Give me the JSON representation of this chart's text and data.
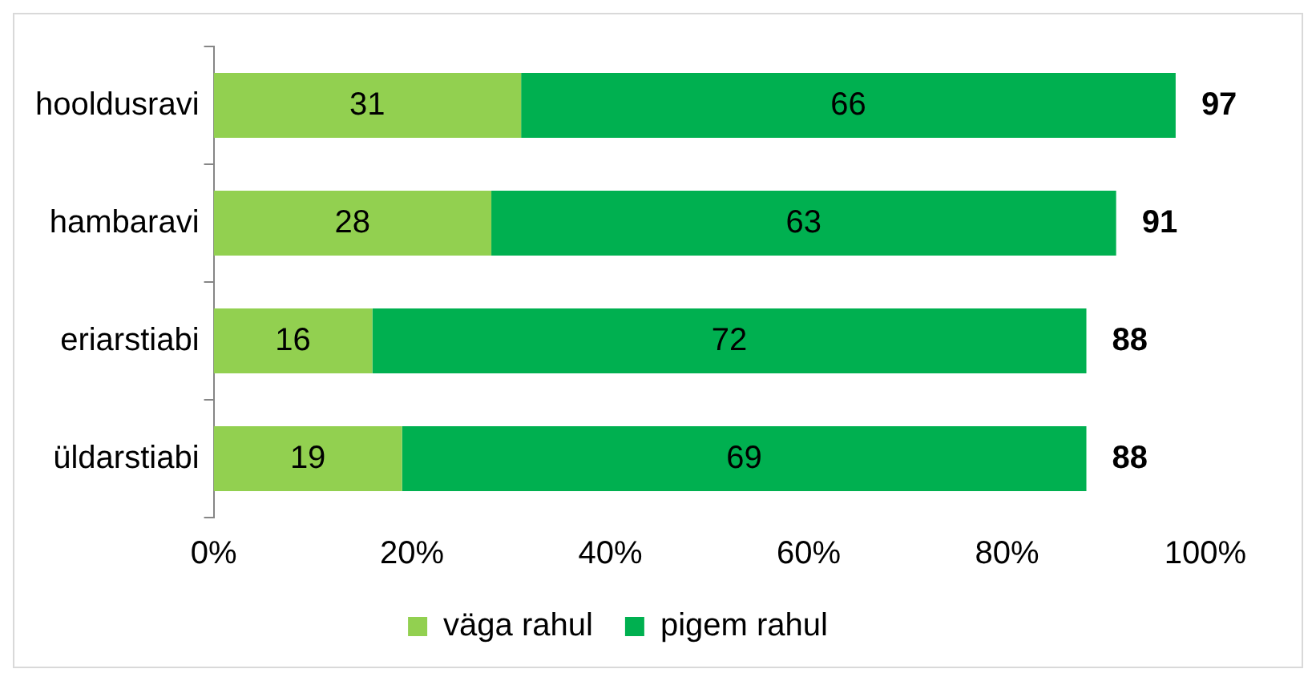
{
  "chart_data": {
    "type": "bar",
    "orientation": "horizontal",
    "stacked": true,
    "categories": [
      "hooldusravi",
      "hambaravi",
      "eriarstiabi",
      "üldarstiabi"
    ],
    "series": [
      {
        "name": "väga rahul",
        "color": "#92d050",
        "values": [
          31,
          28,
          16,
          19
        ]
      },
      {
        "name": "pigem rahul",
        "color": "#00b050",
        "values": [
          66,
          63,
          72,
          69
        ]
      }
    ],
    "totals": [
      "97",
      "91",
      "88",
      "88"
    ],
    "data_labels": true,
    "xlim": [
      0,
      100
    ],
    "xticks": [
      {
        "value": 0,
        "label": "0%"
      },
      {
        "value": 20,
        "label": "20%"
      },
      {
        "value": 40,
        "label": "40%"
      },
      {
        "value": 60,
        "label": "60%"
      },
      {
        "value": 80,
        "label": "80%"
      },
      {
        "value": 100,
        "label": "100%"
      }
    ],
    "legend": "bottom"
  }
}
